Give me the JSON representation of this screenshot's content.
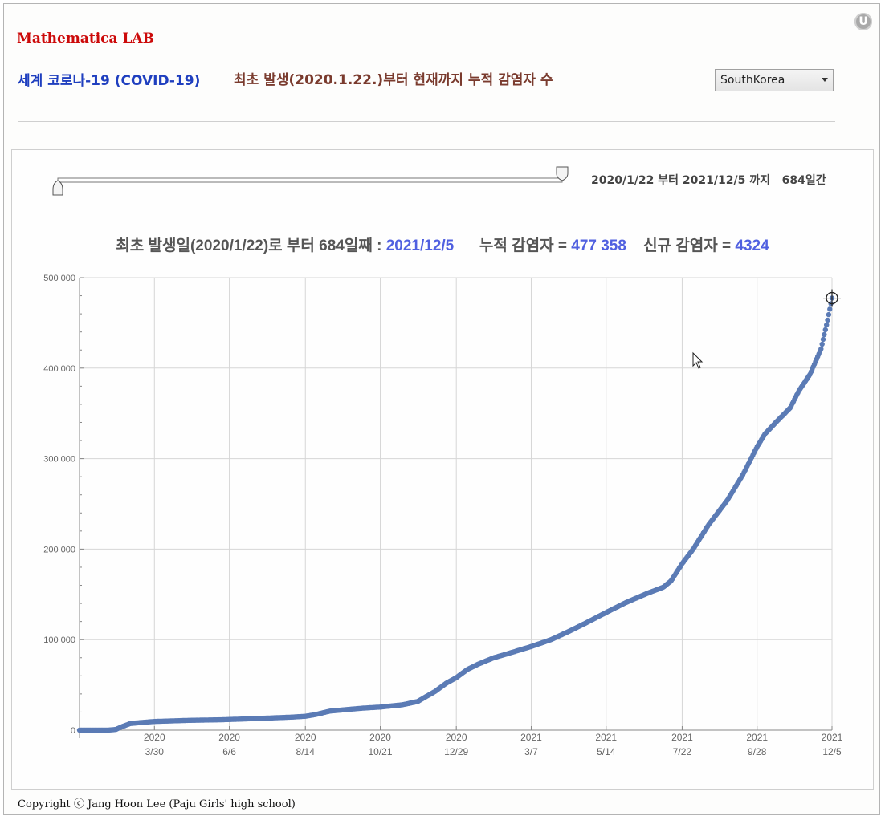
{
  "header": {
    "lab_title": "Mathematica LAB",
    "subtitle_left": "세계 코로나-19 (COVID-19)",
    "subtitle_right": "최초 발생(2020.1.22.)부터 현재까지 누적 감염자 수",
    "country_selected": "SouthKorea"
  },
  "slider": {
    "range_label_prefix": "2020/1/22 부터 2021/12/5 까지",
    "range_days": "684일간",
    "start_position": 0.0,
    "end_position": 1.0
  },
  "headline": {
    "part1": "최초 발생일(2020/1/22)로 부터 684일째 : ",
    "date": "2021/12/5",
    "part2": "누적 감염자 = ",
    "cumulative": "477 358",
    "part3": "신규 감염자 = ",
    "new_cases": "4324"
  },
  "footer": {
    "copyright": "Copyright ⓒ Jang Hoon Lee (Paju Girls' high school)"
  },
  "colors": {
    "accent_red": "#cc0a0a",
    "subtitle_blue": "#1f3fbf",
    "subtitle_brown": "#7a3b2e",
    "highlight": "#5060e0",
    "series": "#5b7bb5"
  },
  "chart_data": {
    "type": "scatter",
    "title": "",
    "xlabel": "",
    "ylabel": "",
    "ylim": [
      0,
      500000
    ],
    "x_range": [
      "2020-01-22",
      "2021-12-05"
    ],
    "yticks": [
      0,
      100000,
      200000,
      300000,
      400000,
      500000
    ],
    "ytick_labels": [
      "0",
      "100 000",
      "200 000",
      "300 000",
      "400 000",
      "500 000"
    ],
    "xticks": [
      {
        "date": "2020-03-30",
        "year": "2020",
        "day": "3/30"
      },
      {
        "date": "2020-06-06",
        "year": "2020",
        "day": "6/6"
      },
      {
        "date": "2020-08-14",
        "year": "2020",
        "day": "8/14"
      },
      {
        "date": "2020-10-21",
        "year": "2020",
        "day": "10/21"
      },
      {
        "date": "2020-12-29",
        "year": "2020",
        "day": "12/29"
      },
      {
        "date": "2021-03-07",
        "year": "2021",
        "day": "3/7"
      },
      {
        "date": "2021-05-14",
        "year": "2021",
        "day": "5/14"
      },
      {
        "date": "2021-07-22",
        "year": "2021",
        "day": "7/22"
      },
      {
        "date": "2021-09-28",
        "year": "2021",
        "day": "9/28"
      },
      {
        "date": "2021-12-05",
        "year": "2021",
        "day": "12/5"
      }
    ],
    "grid": true,
    "series": [
      {
        "x": [
          "2020-01-22",
          "2020-02-17",
          "2020-02-24",
          "2020-03-01",
          "2020-03-08",
          "2020-03-15",
          "2020-03-30",
          "2020-04-30",
          "2020-05-31",
          "2020-06-30",
          "2020-07-31",
          "2020-08-14",
          "2020-08-24",
          "2020-09-05",
          "2020-09-20",
          "2020-10-05",
          "2020-10-21",
          "2020-11-10",
          "2020-11-24",
          "2020-12-10",
          "2020-12-20",
          "2020-12-29",
          "2021-01-08",
          "2021-01-18",
          "2021-02-01",
          "2021-02-15",
          "2021-03-07",
          "2021-03-25",
          "2021-04-10",
          "2021-04-25",
          "2021-05-14",
          "2021-06-01",
          "2021-06-20",
          "2021-07-05",
          "2021-07-12",
          "2021-07-22",
          "2021-08-01",
          "2021-08-15",
          "2021-09-01",
          "2021-09-15",
          "2021-09-28",
          "2021-10-05",
          "2021-10-15",
          "2021-10-28",
          "2021-11-05",
          "2021-11-15",
          "2021-11-25",
          "2021-12-01",
          "2021-12-05"
        ],
        "y": [
          0,
          30,
          800,
          4000,
          7300,
          8100,
          9600,
          10800,
          11500,
          12800,
          14300,
          15300,
          17400,
          21000,
          22700,
          24300,
          25500,
          28000,
          31700,
          43000,
          52000,
          58000,
          67000,
          73000,
          80000,
          85000,
          92400,
          100000,
          109000,
          118000,
          130000,
          141000,
          151000,
          158000,
          165000,
          184000,
          200000,
          227000,
          254000,
          282000,
          313000,
          327000,
          340000,
          356000,
          375000,
          393000,
          421000,
          453000,
          477358
        ]
      }
    ]
  }
}
